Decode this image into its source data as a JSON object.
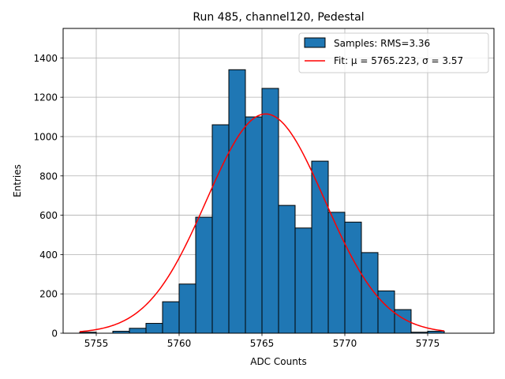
{
  "chart_data": {
    "type": "bar",
    "title": "Run 485, channel120, Pedestal",
    "xlabel": "ADC Counts",
    "ylabel": "Entries",
    "xlim": [
      5753,
      5779
    ],
    "ylim": [
      0,
      1550
    ],
    "xticks": [
      5755,
      5760,
      5765,
      5770,
      5775
    ],
    "yticks": [
      0,
      200,
      400,
      600,
      800,
      1000,
      1200,
      1400
    ],
    "grid": true,
    "legend_position": "top-right",
    "histogram": {
      "name": "Samples: RMS=3.36",
      "bin_width": 1,
      "bins": [
        {
          "left": 5754,
          "count": 5
        },
        {
          "left": 5755,
          "count": 0
        },
        {
          "left": 5756,
          "count": 10
        },
        {
          "left": 5757,
          "count": 25
        },
        {
          "left": 5758,
          "count": 50
        },
        {
          "left": 5759,
          "count": 160
        },
        {
          "left": 5760,
          "count": 250
        },
        {
          "left": 5761,
          "count": 590
        },
        {
          "left": 5762,
          "count": 1060
        },
        {
          "left": 5763,
          "count": 1340
        },
        {
          "left": 5764,
          "count": 1100
        },
        {
          "left": 5765,
          "count": 1245
        },
        {
          "left": 5766,
          "count": 650
        },
        {
          "left": 5767,
          "count": 535
        },
        {
          "left": 5768,
          "count": 875
        },
        {
          "left": 5769,
          "count": 615
        },
        {
          "left": 5770,
          "count": 565
        },
        {
          "left": 5771,
          "count": 410
        },
        {
          "left": 5772,
          "count": 215
        },
        {
          "left": 5773,
          "count": 120
        },
        {
          "left": 5774,
          "count": 5
        },
        {
          "left": 5775,
          "count": 10
        }
      ],
      "fill_color": "#1f77b4",
      "edge_color": "#000000"
    },
    "fit": {
      "name": "Fit: μ = 5765.223, σ = 3.57",
      "mu": 5765.223,
      "sigma": 3.57,
      "amplitude": 1115,
      "x_range": [
        5754,
        5776
      ],
      "color": "#ff0000"
    }
  }
}
